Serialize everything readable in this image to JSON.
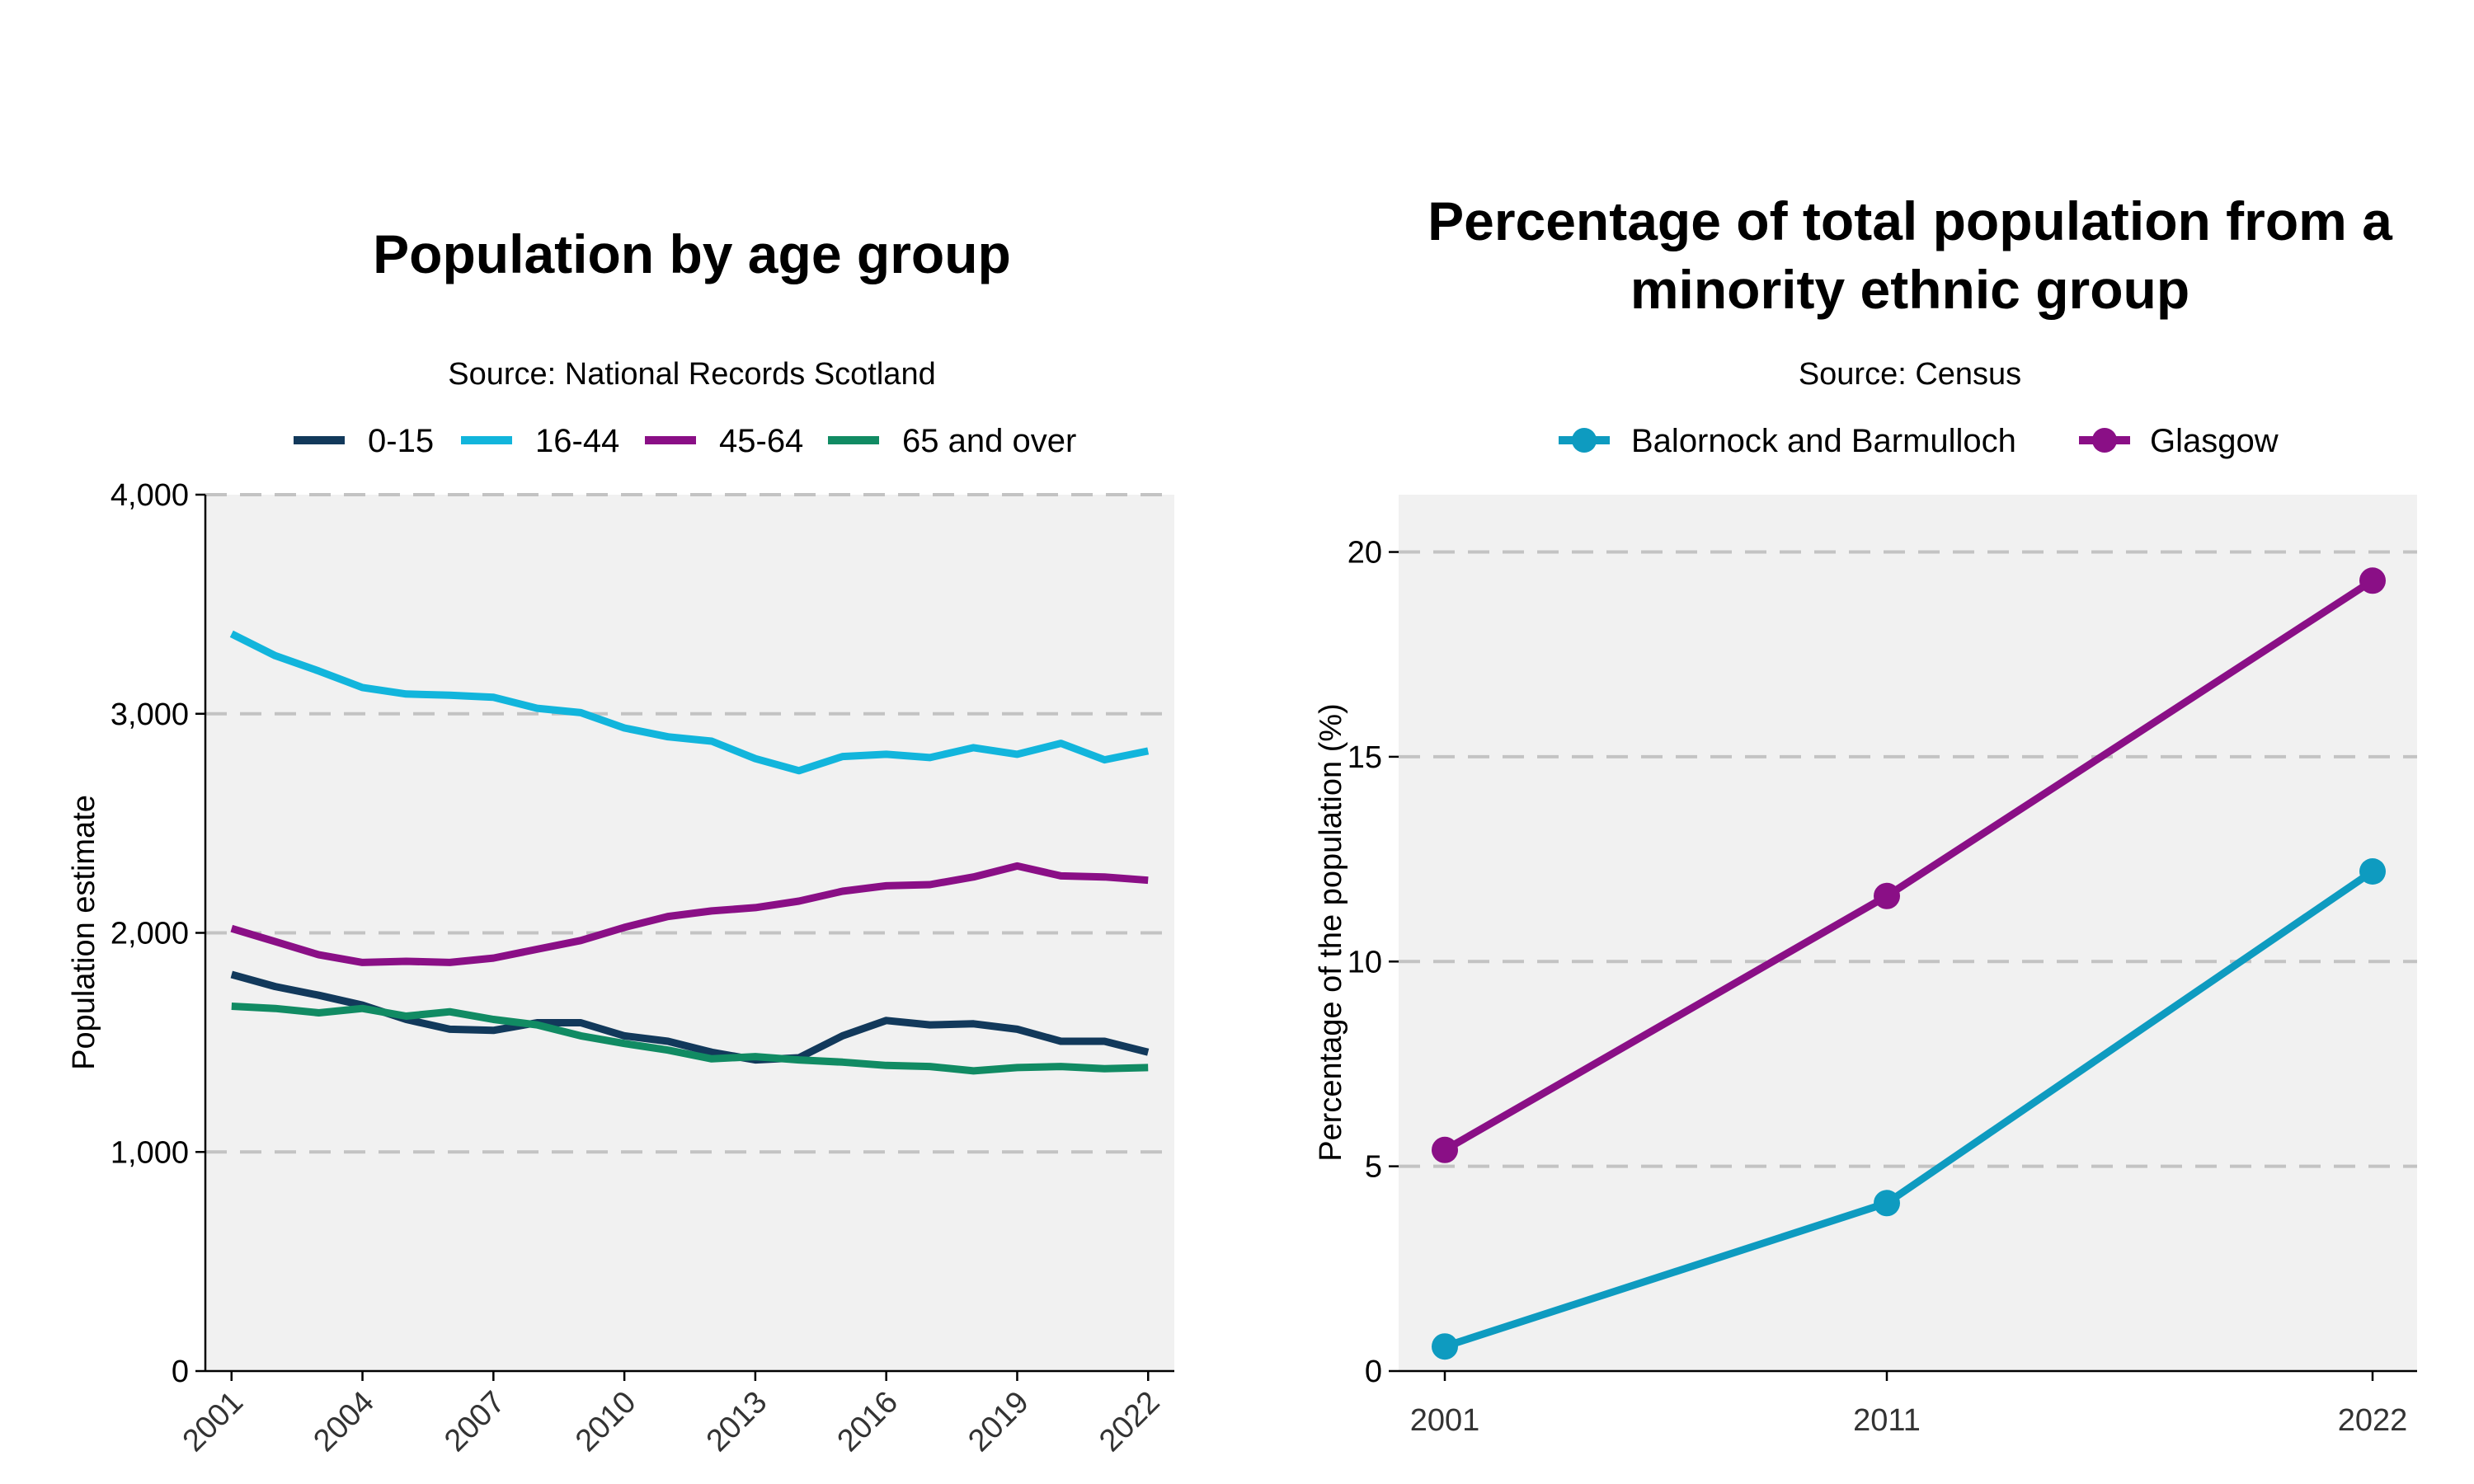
{
  "chart_data": [
    {
      "type": "line",
      "title": "Population by age group",
      "subtitle": "Source: National Records Scotland",
      "xlabel": "",
      "ylabel": "Population estimate",
      "ylim": [
        0,
        4000
      ],
      "yticks": [
        0,
        1000,
        2000,
        3000,
        4000
      ],
      "ytick_labels": [
        "0",
        "1,000",
        "2,000",
        "3,000",
        "4,000"
      ],
      "xlim": [
        2000.4,
        2022.6
      ],
      "xticks": [
        2001,
        2004,
        2007,
        2010,
        2013,
        2016,
        2019,
        2022
      ],
      "xtick_labels": [
        "2001",
        "2004",
        "2007",
        "2010",
        "2013",
        "2016",
        "2019",
        "2022"
      ],
      "legend_position": "top",
      "x": [
        2001,
        2002,
        2003,
        2004,
        2005,
        2006,
        2007,
        2008,
        2009,
        2010,
        2011,
        2012,
        2013,
        2014,
        2015,
        2016,
        2017,
        2018,
        2019,
        2020,
        2021,
        2022
      ],
      "series": [
        {
          "name": "0-15",
          "color": "#12395b",
          "values": [
            1810,
            1755,
            1715,
            1670,
            1605,
            1560,
            1555,
            1590,
            1590,
            1530,
            1505,
            1455,
            1420,
            1430,
            1530,
            1600,
            1580,
            1585,
            1560,
            1505,
            1505,
            1455
          ]
        },
        {
          "name": "16-44",
          "color": "#12b5dc",
          "values": [
            3365,
            3265,
            3195,
            3120,
            3090,
            3085,
            3075,
            3025,
            3005,
            2935,
            2895,
            2875,
            2795,
            2740,
            2805,
            2815,
            2800,
            2845,
            2815,
            2865,
            2790,
            2830
          ]
        },
        {
          "name": "45-64",
          "color": "#8a0f86",
          "values": [
            2020,
            1960,
            1900,
            1865,
            1870,
            1865,
            1885,
            1925,
            1965,
            2025,
            2075,
            2100,
            2115,
            2145,
            2190,
            2215,
            2220,
            2255,
            2305,
            2260,
            2255,
            2240
          ]
        },
        {
          "name": "65 and over",
          "color": "#118b63",
          "values": [
            1665,
            1655,
            1635,
            1655,
            1620,
            1640,
            1605,
            1580,
            1530,
            1495,
            1465,
            1425,
            1435,
            1420,
            1410,
            1395,
            1390,
            1370,
            1385,
            1390,
            1380,
            1385
          ]
        }
      ]
    },
    {
      "type": "line",
      "title": "Percentage of total population from a minority ethnic group",
      "title_lines": [
        "Percentage of total population from a",
        "minority ethnic group"
      ],
      "subtitle": "Source: Census",
      "xlabel": "",
      "ylabel": "Percentage of the population (%)",
      "ylim": [
        0,
        21.4
      ],
      "yticks": [
        0,
        5,
        10,
        15,
        20
      ],
      "ytick_labels": [
        "0",
        "5",
        "10",
        "15",
        "20"
      ],
      "categories": [
        "2001",
        "2011",
        "2022"
      ],
      "legend_position": "top",
      "series": [
        {
          "name": "Balornock and Barmulloch",
          "color": "#0e9bc0",
          "values": [
            0.6,
            4.1,
            12.2
          ]
        },
        {
          "name": "Glasgow",
          "color": "#8a0f86",
          "values": [
            5.4,
            11.6,
            19.3
          ]
        }
      ]
    }
  ]
}
